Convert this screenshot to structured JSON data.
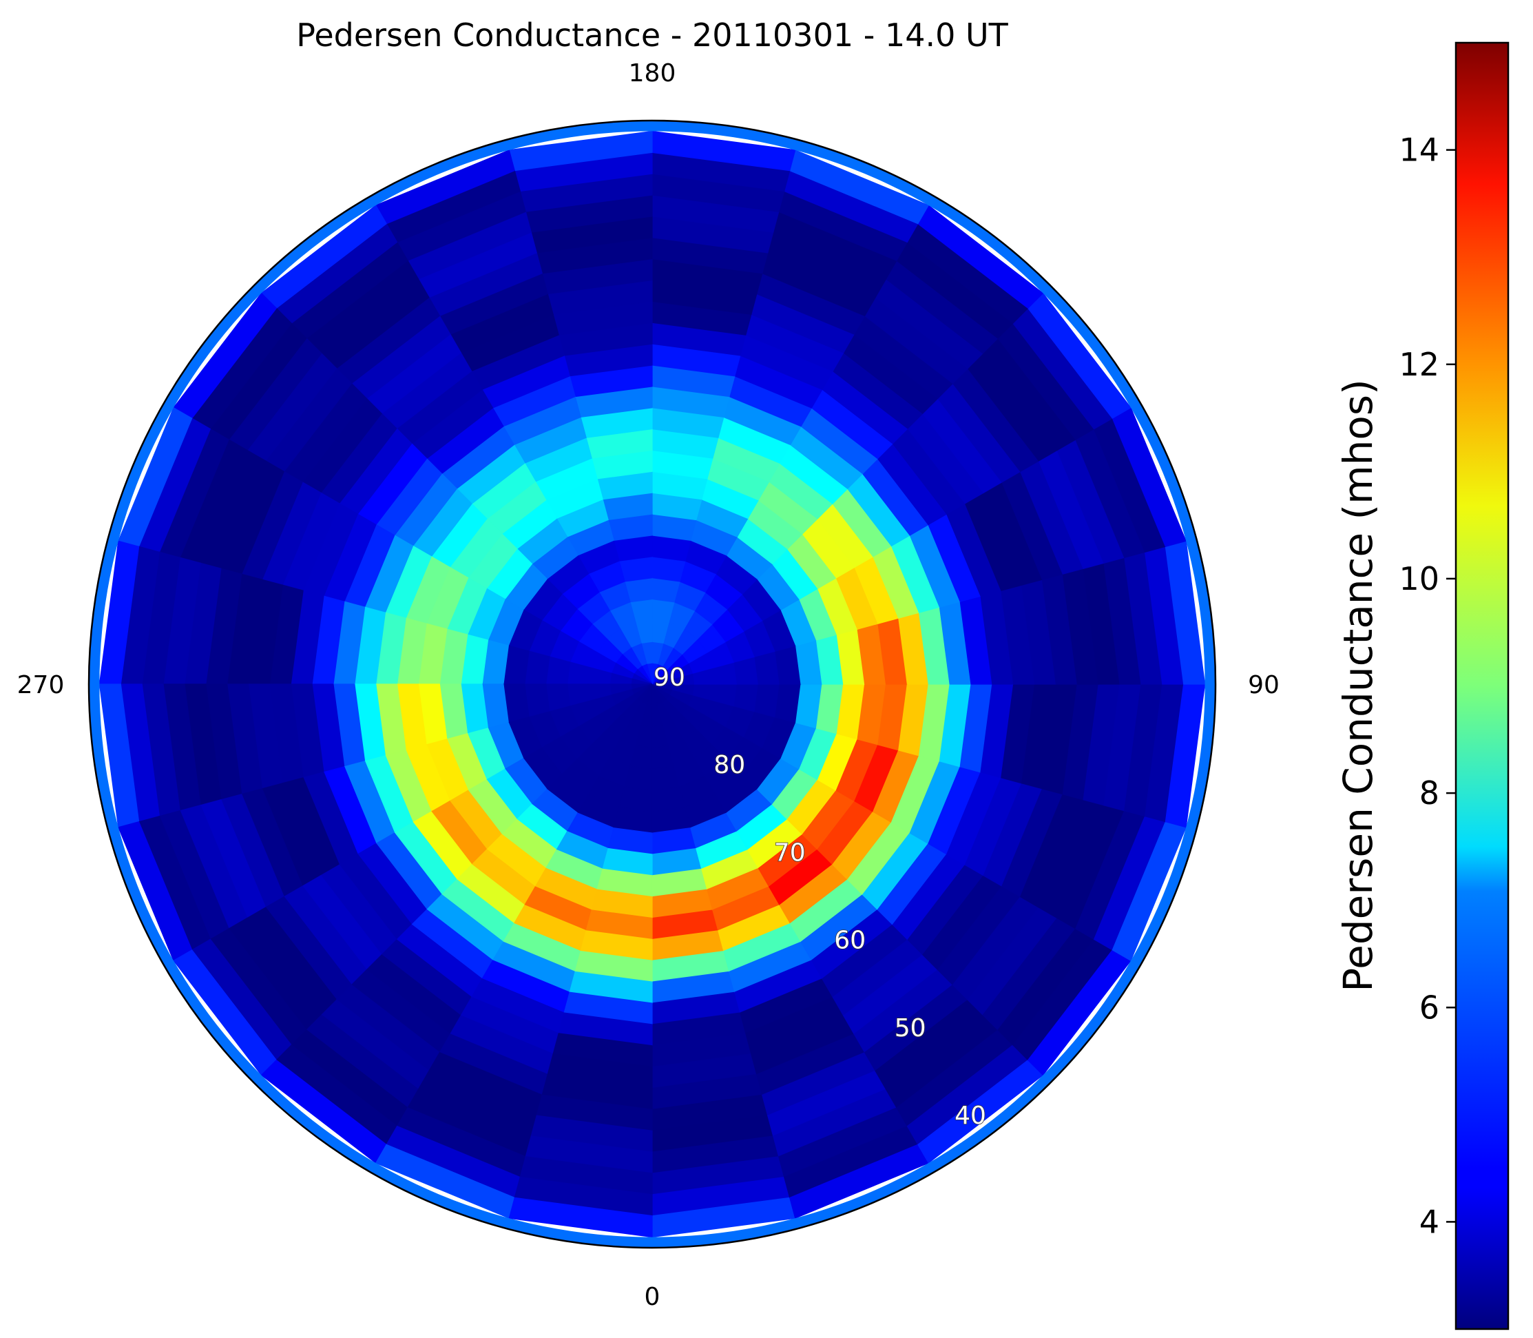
{
  "chart_data": {
    "type": "heatmap",
    "projection": "polar",
    "title": "Pedersen Conductance - 20110301 - 14.0 UT",
    "theta_direction": "clockwise",
    "theta_zero": "bottom",
    "theta_ticks": [
      {
        "value": 0,
        "label": "0"
      },
      {
        "value": 90,
        "label": "90"
      },
      {
        "value": 180,
        "label": "180"
      },
      {
        "value": 270,
        "label": "270"
      }
    ],
    "r_ticks": [
      "90",
      "80",
      "70",
      "60",
      "50",
      "40"
    ],
    "r_tick_values": [
      90,
      80,
      70,
      60,
      50,
      40
    ],
    "r_range": [
      90,
      37
    ],
    "r_label_angle_deg": 22.5,
    "theta_bin_deg": 15,
    "lat_rings": [
      89,
      87,
      85,
      83,
      81,
      79,
      77,
      75,
      73,
      71,
      69,
      67,
      65,
      63,
      61,
      59,
      57,
      55,
      53,
      51,
      49,
      47,
      45,
      43,
      41,
      39
    ],
    "colormap": "jet",
    "colorbar": {
      "label": "Pedersen Conductance (mhos)",
      "range": [
        3.0,
        15.0
      ],
      "ticks": [
        "4",
        "6",
        "8",
        "10",
        "12",
        "14"
      ],
      "tick_values": [
        4,
        6,
        8,
        10,
        12,
        14
      ]
    },
    "description_of_field": {
      "inner_cap_low_value": 3.2,
      "day_sector_peak_value": 12.5,
      "night_sector_value": 6.5,
      "midnight_weak_value": 3.6
    }
  }
}
